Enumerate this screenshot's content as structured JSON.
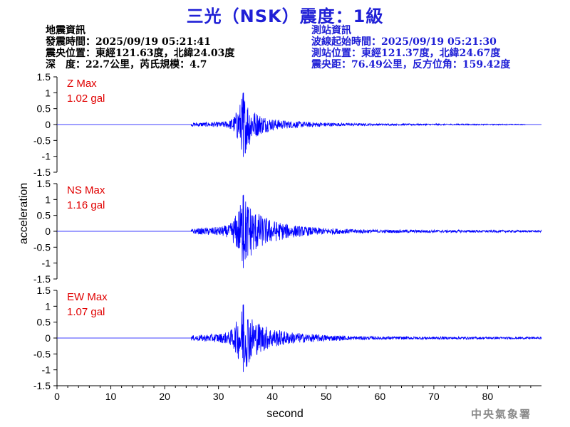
{
  "title": "三光（NSK）震度：1級",
  "quake_info": {
    "heading": "地震資訊",
    "origin_time": "發震時間：2025/09/19 05:21:41",
    "epicenter": "震央位置：東經121.63度，北緯24.03度",
    "depth_magnitude": "深　度：22.7公里，芮氏規模：4.7"
  },
  "station_info": {
    "heading": "測站資訊",
    "wave_start": "波線起始時間：2025/09/19 05:21:30",
    "station_location": "測站位置：東經121.37度，北緯24.67度",
    "distance_azimuth": "震央距：76.49公里，反方位角：159.42度"
  },
  "agency": "中央氣象署",
  "colors": {
    "title": "#1f1fd6",
    "trace": "#0000ff",
    "max_label": "#e00000",
    "station_text": "#1f1fd6",
    "axis": "#000000"
  },
  "chart_data": {
    "type": "line",
    "xlabel": "second",
    "ylabel": "acceleration",
    "xlim": [
      0,
      90
    ],
    "x_ticks": [
      0,
      10,
      20,
      30,
      40,
      50,
      60,
      70,
      80
    ],
    "y_ticks": [
      1.5,
      1,
      0.5,
      0,
      -0.5,
      -1,
      -1.5
    ],
    "grid": false,
    "panels": [
      {
        "component": "Z",
        "max_label": "Z Max",
        "max_value": "1.02 gal",
        "ylim": [
          -1.5,
          1.5
        ],
        "envelope": [
          [
            0,
            0.01
          ],
          [
            24.9,
            0.01
          ],
          [
            25,
            0.06
          ],
          [
            30,
            0.08
          ],
          [
            32,
            0.12
          ],
          [
            33,
            0.3
          ],
          [
            34,
            0.7
          ],
          [
            34.6,
            1.02
          ],
          [
            35.5,
            0.75
          ],
          [
            36.5,
            0.45
          ],
          [
            38,
            0.3
          ],
          [
            40,
            0.18
          ],
          [
            43,
            0.12
          ],
          [
            46,
            0.09
          ],
          [
            50,
            0.06
          ],
          [
            55,
            0.04
          ],
          [
            60,
            0.03
          ],
          [
            75,
            0.02
          ],
          [
            90,
            0.01
          ]
        ]
      },
      {
        "component": "NS",
        "max_label": "NS Max",
        "max_value": "1.16 gal",
        "ylim": [
          -1.5,
          1.5
        ],
        "envelope": [
          [
            0,
            0.01
          ],
          [
            24.9,
            0.01
          ],
          [
            25,
            0.08
          ],
          [
            30,
            0.14
          ],
          [
            32,
            0.2
          ],
          [
            33,
            0.45
          ],
          [
            34,
            0.85
          ],
          [
            34.6,
            1.16
          ],
          [
            35.5,
            0.95
          ],
          [
            36.5,
            0.7
          ],
          [
            38,
            0.5
          ],
          [
            40,
            0.35
          ],
          [
            43,
            0.22
          ],
          [
            46,
            0.15
          ],
          [
            50,
            0.1
          ],
          [
            55,
            0.07
          ],
          [
            60,
            0.05
          ],
          [
            75,
            0.04
          ],
          [
            90,
            0.03
          ]
        ]
      },
      {
        "component": "EW",
        "max_label": "EW Max",
        "max_value": "1.07 gal",
        "ylim": [
          -1.5,
          1.5
        ],
        "envelope": [
          [
            0,
            0.01
          ],
          [
            24.9,
            0.01
          ],
          [
            25,
            0.08
          ],
          [
            30,
            0.14
          ],
          [
            32,
            0.2
          ],
          [
            33,
            0.4
          ],
          [
            34,
            0.8
          ],
          [
            34.6,
            1.07
          ],
          [
            35.5,
            0.85
          ],
          [
            36.5,
            0.6
          ],
          [
            38,
            0.45
          ],
          [
            40,
            0.3
          ],
          [
            43,
            0.2
          ],
          [
            46,
            0.14
          ],
          [
            50,
            0.1
          ],
          [
            55,
            0.06
          ],
          [
            60,
            0.05
          ],
          [
            75,
            0.04
          ],
          [
            90,
            0.03
          ]
        ]
      }
    ]
  }
}
